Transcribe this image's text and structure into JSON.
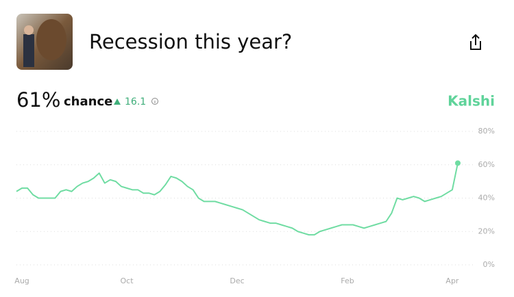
{
  "market": {
    "title": "Recession this year?",
    "probability": "61%",
    "chance_text": "chance",
    "change": 16.1,
    "brand": "Kalshi"
  },
  "chart_data": {
    "type": "line",
    "categories": [
      null,
      "Aug",
      null,
      null,
      null,
      null,
      null,
      null,
      null,
      null,
      null,
      null,
      null,
      null,
      null,
      null,
      null,
      null,
      null,
      null,
      "Oct",
      null,
      null,
      null,
      null,
      null,
      null,
      null,
      null,
      null,
      null,
      null,
      null,
      null,
      null,
      null,
      null,
      null,
      null,
      null,
      "Dec",
      null,
      null,
      null,
      null,
      null,
      null,
      null,
      null,
      null,
      null,
      null,
      null,
      null,
      null,
      null,
      null,
      null,
      null,
      null,
      "Feb",
      null,
      null,
      null,
      null,
      null,
      null,
      null,
      null,
      null,
      null,
      null,
      null,
      null,
      null,
      null,
      null,
      null,
      null,
      "Apr",
      null
    ],
    "series": [
      {
        "name": "Recession this year?",
        "color": "#6fdca2",
        "values": [
          44,
          46,
          46,
          42,
          40,
          40,
          40,
          40,
          44,
          45,
          44,
          47,
          49,
          50,
          52,
          55,
          49,
          51,
          50,
          47,
          46,
          45,
          45,
          43,
          43,
          42,
          44,
          48,
          53,
          52,
          50,
          47,
          45,
          40,
          38,
          38,
          38,
          37,
          36,
          35,
          34,
          33,
          31,
          29,
          27,
          26,
          25,
          25,
          24,
          23,
          22,
          20,
          19,
          18,
          18,
          20,
          21,
          22,
          23,
          24,
          24,
          24,
          23,
          22,
          23,
          24,
          25,
          26,
          31,
          40,
          39,
          40,
          41,
          40,
          38,
          39,
          40,
          41,
          43,
          45,
          61
        ]
      }
    ],
    "ylim": [
      0,
      80
    ],
    "yticks": [
      {
        "value": 0,
        "label": "0%"
      },
      {
        "value": 20,
        "label": "20%"
      },
      {
        "value": 40,
        "label": "40%"
      },
      {
        "value": 60,
        "label": "60%"
      },
      {
        "value": 80,
        "label": "80%"
      }
    ],
    "grid": true
  }
}
